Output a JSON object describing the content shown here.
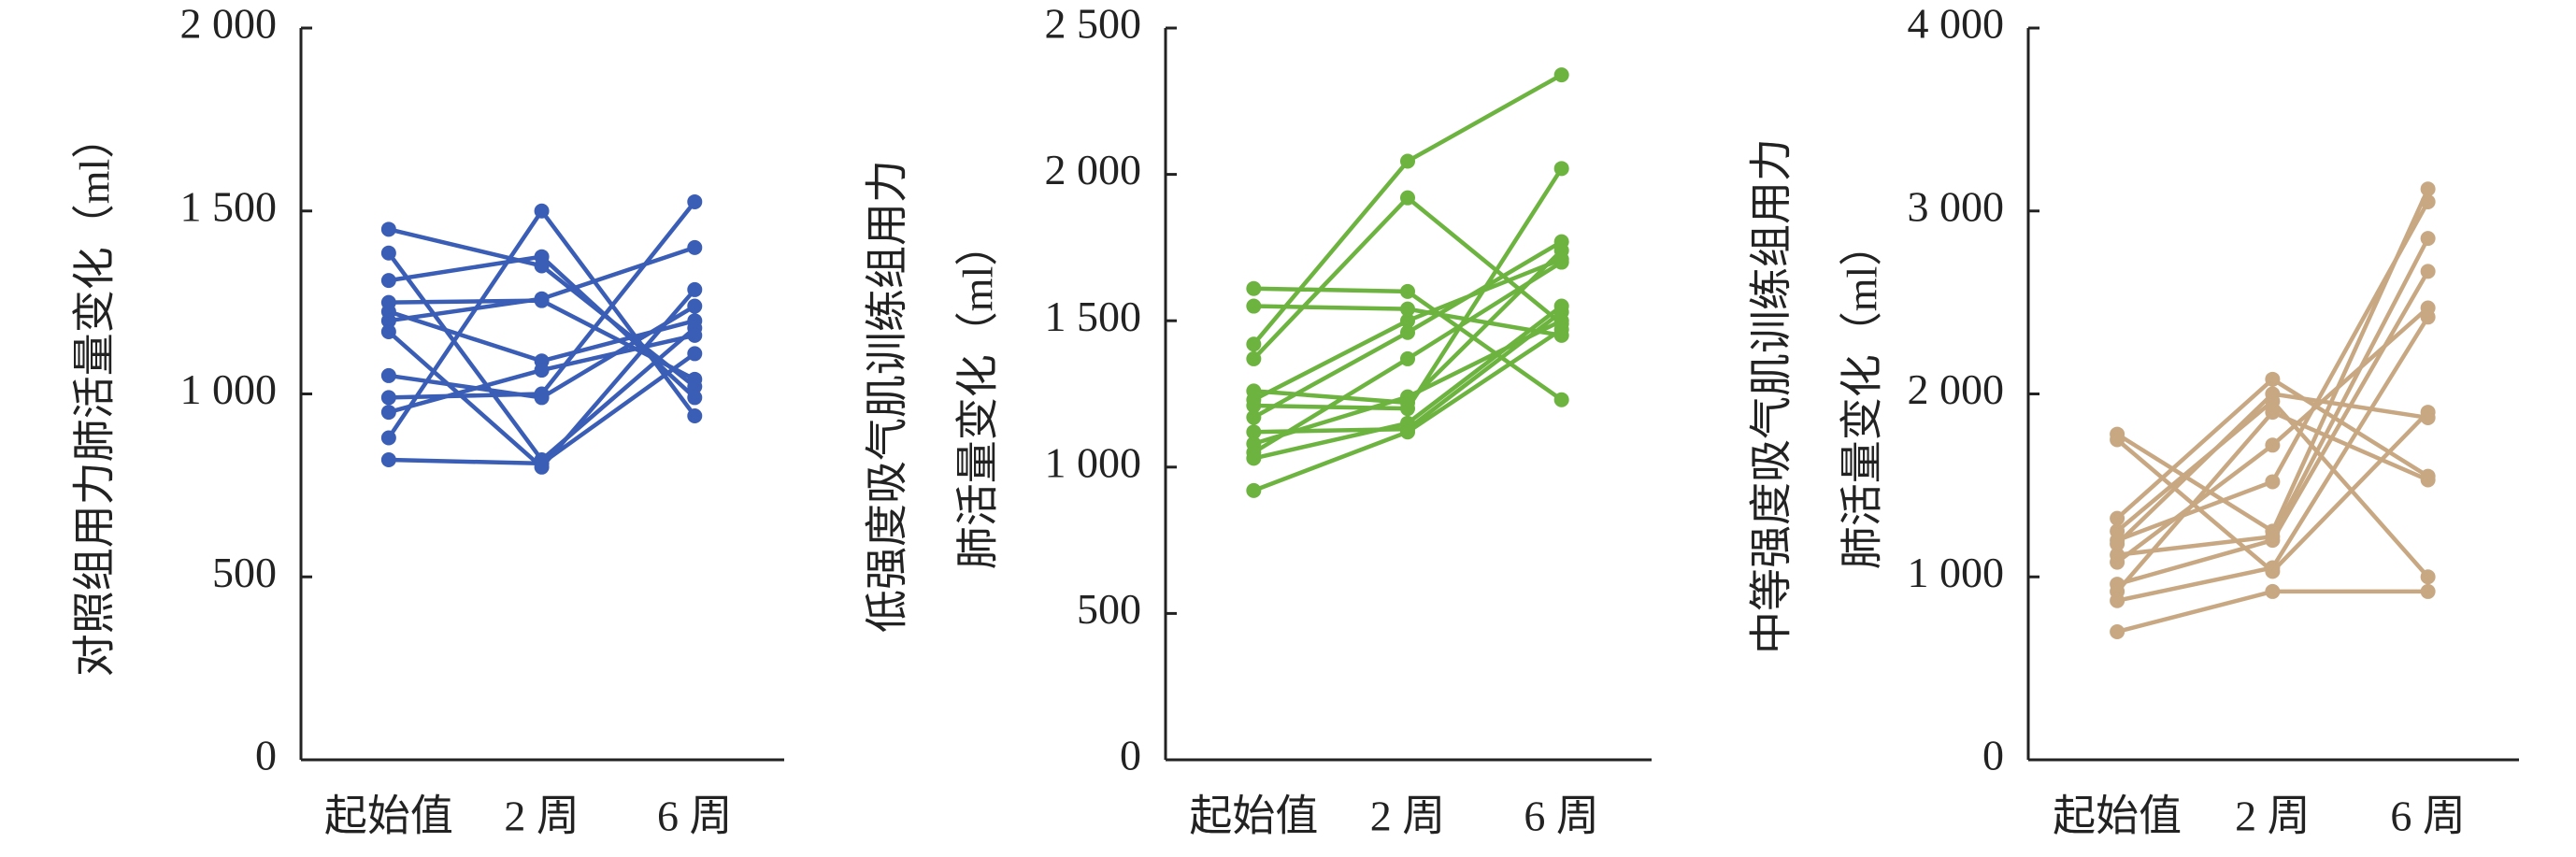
{
  "chart_data": [
    {
      "type": "line",
      "y_label": [
        "对照组用力肺活量变化（ml）"
      ],
      "categories": [
        "起始值",
        "2 周",
        "6 周"
      ],
      "ylim": [
        0,
        2000
      ],
      "yticks": [
        0,
        500,
        {
          "value": 1000,
          "label": "1 000"
        },
        {
          "value": 1500,
          "label": "1 500"
        },
        {
          "value": 2000,
          "label": "2 000"
        }
      ],
      "series": [
        {
          "color": "#3a5db5",
          "values": [
            1450,
            1350,
            1020
          ]
        },
        {
          "color": "#3a5db5",
          "values": [
            1385,
            820,
            1180
          ]
        },
        {
          "color": "#3a5db5",
          "values": [
            1310,
            1375,
            990
          ]
        },
        {
          "color": "#3a5db5",
          "values": [
            1250,
            1255,
            1040
          ]
        },
        {
          "color": "#3a5db5",
          "values": [
            1225,
            1090,
            1200
          ]
        },
        {
          "color": "#3a5db5",
          "values": [
            1200,
            1260,
            1400
          ]
        },
        {
          "color": "#3a5db5",
          "values": [
            1170,
            800,
            1285
          ]
        },
        {
          "color": "#3a5db5",
          "values": [
            1050,
            990,
            1240
          ]
        },
        {
          "color": "#3a5db5",
          "values": [
            990,
            1000,
            1525
          ]
        },
        {
          "color": "#3a5db5",
          "values": [
            950,
            1065,
            1160
          ]
        },
        {
          "color": "#3a5db5",
          "values": [
            880,
            1500,
            940
          ]
        },
        {
          "color": "#3a5db5",
          "values": [
            820,
            810,
            1110
          ]
        }
      ]
    },
    {
      "type": "line",
      "y_label": [
        "低强度吸气肌训练组用力",
        "肺活量变化（ml）"
      ],
      "categories": [
        "起始值",
        "2 周",
        "6 周"
      ],
      "ylim": [
        0,
        2500
      ],
      "yticks": [
        0,
        500,
        {
          "value": 1000,
          "label": "1 000"
        },
        {
          "value": 1500,
          "label": "1 500"
        },
        {
          "value": 2000,
          "label": "2 000"
        },
        {
          "value": 2500,
          "label": "2 500"
        }
      ],
      "series": [
        {
          "color": "#6db33f",
          "values": [
            1610,
            1600,
            1230
          ]
        },
        {
          "color": "#6db33f",
          "values": [
            1550,
            1540,
            1450
          ]
        },
        {
          "color": "#6db33f",
          "values": [
            1420,
            2045,
            2340
          ]
        },
        {
          "color": "#6db33f",
          "values": [
            1370,
            1920,
            1490
          ]
        },
        {
          "color": "#6db33f",
          "values": [
            1260,
            1220,
            1740
          ]
        },
        {
          "color": "#6db33f",
          "values": [
            1230,
            1500,
            1710
          ]
        },
        {
          "color": "#6db33f",
          "values": [
            1210,
            1200,
            2020
          ]
        },
        {
          "color": "#6db33f",
          "values": [
            1170,
            1460,
            1770
          ]
        },
        {
          "color": "#6db33f",
          "values": [
            1120,
            1130,
            1530
          ]
        },
        {
          "color": "#6db33f",
          "values": [
            1080,
            1240,
            1500
          ]
        },
        {
          "color": "#6db33f",
          "values": [
            1050,
            1370,
            1700
          ]
        },
        {
          "color": "#6db33f",
          "values": [
            1030,
            1150,
            1550
          ]
        },
        {
          "color": "#6db33f",
          "values": [
            920,
            1120,
            1470
          ]
        }
      ]
    },
    {
      "type": "line",
      "y_label": [
        "中等强度吸气肌训练组用力",
        "肺活量变化（ml）"
      ],
      "categories": [
        "起始值",
        "2 周",
        "6 周"
      ],
      "ylim": [
        0,
        4000
      ],
      "yticks": [
        0,
        {
          "value": 1000,
          "label": "1 000"
        },
        {
          "value": 2000,
          "label": "2 000"
        },
        {
          "value": 3000,
          "label": "3 000"
        },
        {
          "value": 4000,
          "label": "4 000"
        }
      ],
      "series": [
        {
          "color": "#c8a882",
          "values": [
            1780,
            1250,
            3120
          ]
        },
        {
          "color": "#c8a882",
          "values": [
            1750,
            1030,
            1900
          ]
        },
        {
          "color": "#c8a882",
          "values": [
            1320,
            2080,
            1550
          ]
        },
        {
          "color": "#c8a882",
          "values": [
            1250,
            1960,
            1000
          ]
        },
        {
          "color": "#c8a882",
          "values": [
            1200,
            1520,
            3050
          ]
        },
        {
          "color": "#c8a882",
          "values": [
            1180,
            2000,
            1870
          ]
        },
        {
          "color": "#c8a882",
          "values": [
            1120,
            1220,
            2850
          ]
        },
        {
          "color": "#c8a882",
          "values": [
            1080,
            1720,
            2470
          ]
        },
        {
          "color": "#c8a882",
          "values": [
            960,
            1200,
            2670
          ]
        },
        {
          "color": "#c8a882",
          "values": [
            920,
            1900,
            1530
          ]
        },
        {
          "color": "#c8a882",
          "values": [
            870,
            1050,
            2420
          ]
        },
        {
          "color": "#c8a882",
          "values": [
            700,
            920,
            920
          ]
        }
      ]
    }
  ]
}
